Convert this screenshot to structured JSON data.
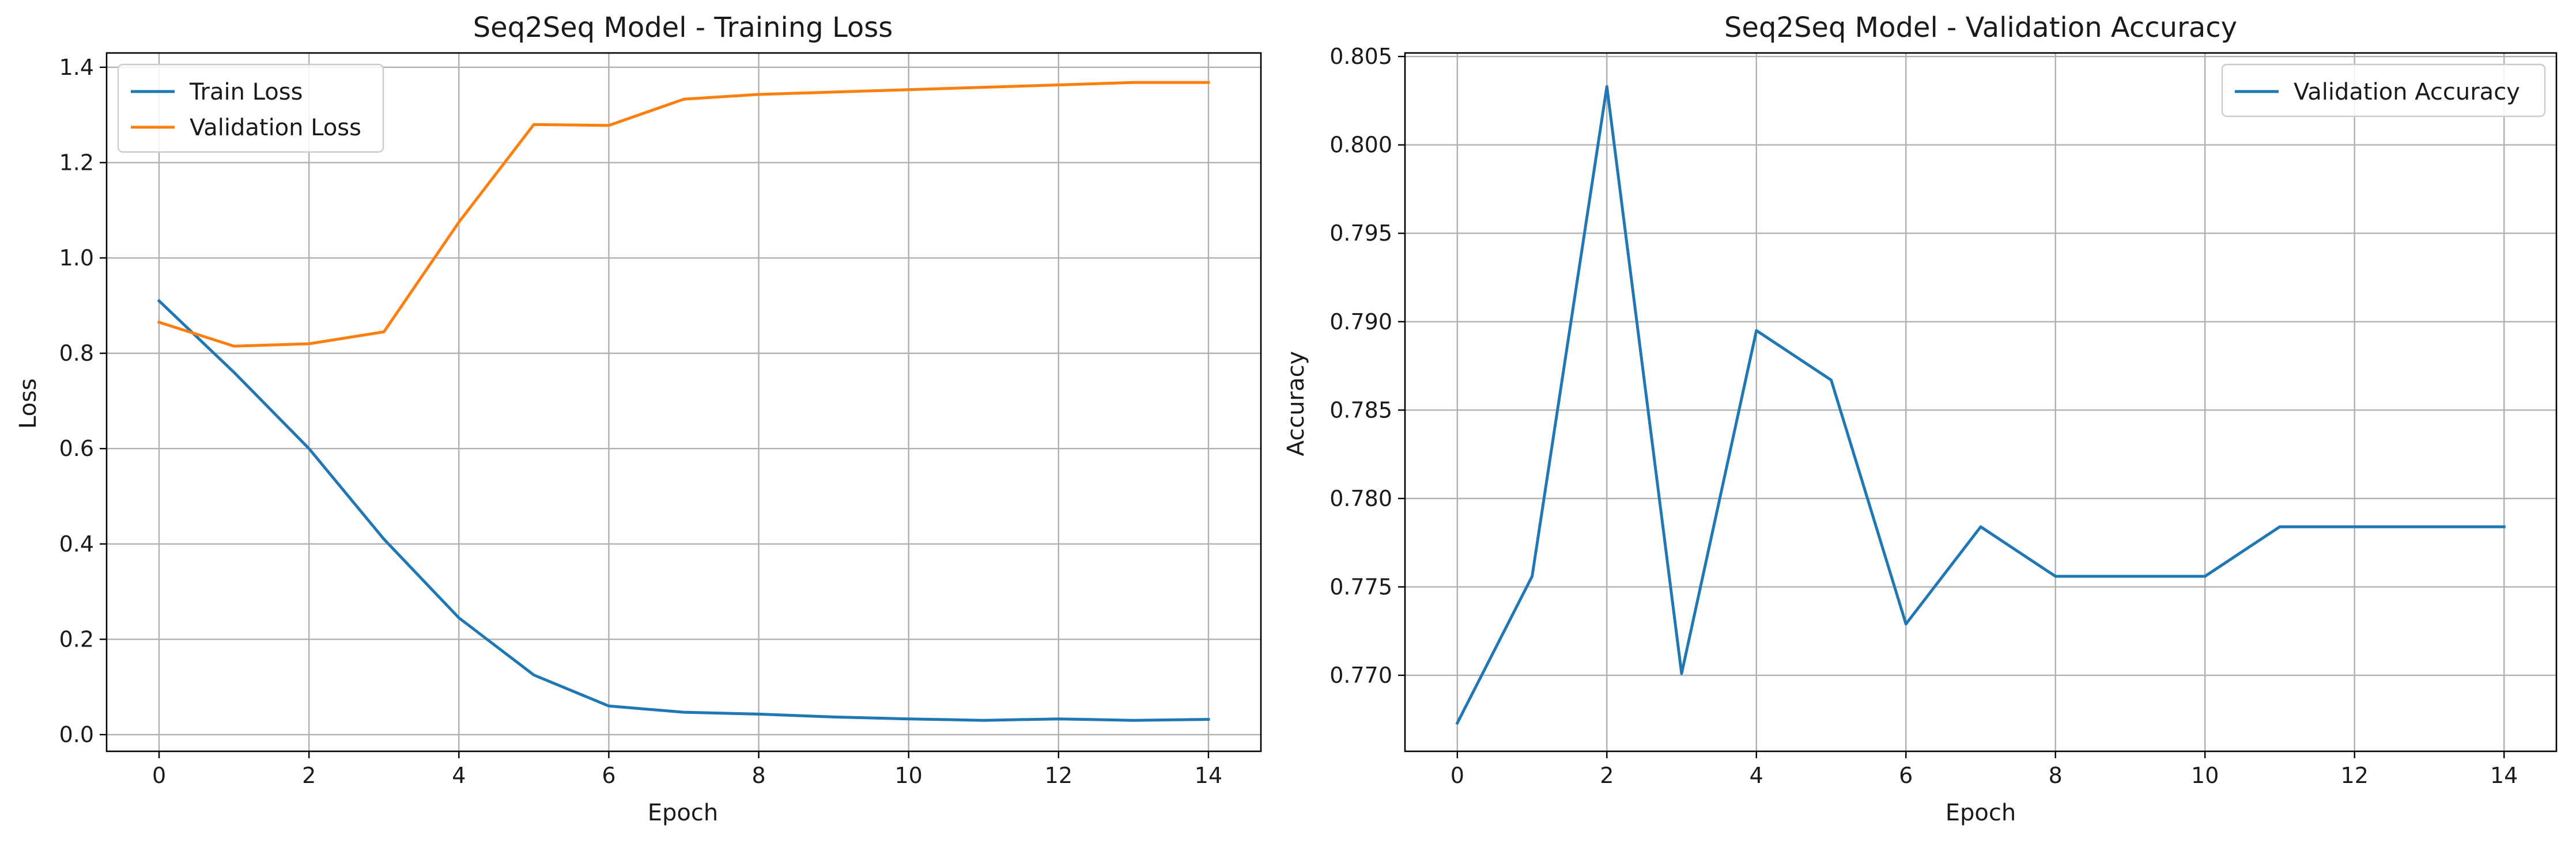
{
  "chart_data": [
    {
      "type": "line",
      "title": "Seq2Seq Model - Training Loss",
      "xlabel": "Epoch",
      "ylabel": "Loss",
      "xlim": [
        -0.7,
        14.7
      ],
      "ylim": [
        -0.035,
        1.43
      ],
      "xticks": [
        0,
        2,
        4,
        6,
        8,
        10,
        12,
        14
      ],
      "yticks": [
        0.0,
        0.2,
        0.4,
        0.6,
        0.8,
        1.0,
        1.2,
        1.4
      ],
      "ytick_labels": [
        "0.0",
        "0.2",
        "0.4",
        "0.6",
        "0.8",
        "1.0",
        "1.2",
        "1.4"
      ],
      "grid": true,
      "legend_position": "upper-left",
      "x": [
        0,
        1,
        2,
        3,
        4,
        5,
        6,
        7,
        8,
        9,
        10,
        11,
        12,
        13,
        14
      ],
      "series": [
        {
          "name": "Train Loss",
          "color": "#1f77b4",
          "values": [
            0.91,
            0.76,
            0.6,
            0.41,
            0.245,
            0.125,
            0.06,
            0.047,
            0.043,
            0.037,
            0.033,
            0.03,
            0.033,
            0.03,
            0.032
          ]
        },
        {
          "name": "Validation Loss",
          "color": "#ff7f0e",
          "values": [
            0.865,
            0.815,
            0.82,
            0.845,
            1.075,
            1.28,
            1.278,
            1.333,
            1.343,
            1.348,
            1.353,
            1.358,
            1.363,
            1.368,
            1.368
          ]
        }
      ]
    },
    {
      "type": "line",
      "title": "Seq2Seq Model - Validation Accuracy",
      "xlabel": "Epoch",
      "ylabel": "Accuracy",
      "xlim": [
        -0.7,
        14.7
      ],
      "ylim": [
        0.7657,
        0.8052
      ],
      "xticks": [
        0,
        2,
        4,
        6,
        8,
        10,
        12,
        14
      ],
      "yticks": [
        0.77,
        0.775,
        0.78,
        0.785,
        0.79,
        0.795,
        0.8,
        0.805
      ],
      "ytick_labels": [
        "0.770",
        "0.775",
        "0.780",
        "0.785",
        "0.790",
        "0.795",
        "0.800",
        "0.805"
      ],
      "grid": true,
      "legend_position": "upper-right",
      "x": [
        0,
        1,
        2,
        3,
        4,
        5,
        6,
        7,
        8,
        9,
        10,
        11,
        12,
        13,
        14
      ],
      "series": [
        {
          "name": "Validation Accuracy",
          "color": "#1f77b4",
          "values": [
            0.7673,
            0.7756,
            0.8033,
            0.7701,
            0.7895,
            0.7867,
            0.7729,
            0.7784,
            0.7756,
            0.7756,
            0.7756,
            0.7784,
            0.7784,
            0.7784,
            0.7784
          ]
        }
      ]
    }
  ]
}
